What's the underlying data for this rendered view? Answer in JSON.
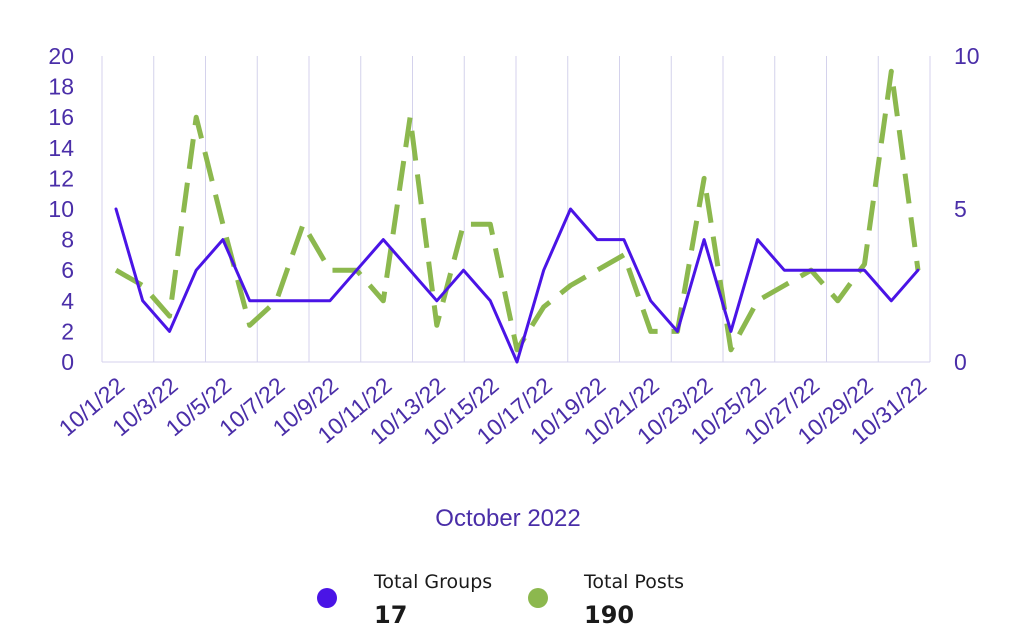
{
  "chart_data": {
    "type": "line",
    "xlabel": "October 2022",
    "categories": [
      "10/1/22",
      "10/2/22",
      "10/3/22",
      "10/4/22",
      "10/5/22",
      "10/6/22",
      "10/7/22",
      "10/8/22",
      "10/9/22",
      "10/10/22",
      "10/11/22",
      "10/12/22",
      "10/13/22",
      "10/14/22",
      "10/15/22",
      "10/16/22",
      "10/17/22",
      "10/18/22",
      "10/19/22",
      "10/20/22",
      "10/21/22",
      "10/22/22",
      "10/23/22",
      "10/24/22",
      "10/25/22",
      "10/26/22",
      "10/27/22",
      "10/28/22",
      "10/29/22",
      "10/30/22",
      "10/31/22"
    ],
    "tick_labels": [
      "10/1/22",
      "10/3/22",
      "10/5/22",
      "10/7/22",
      "10/9/22",
      "10/11/22",
      "10/13/22",
      "10/15/22",
      "10/17/22",
      "10/19/22",
      "10/21/22",
      "10/23/22",
      "10/25/22",
      "10/27/22",
      "10/29/22",
      "10/31/22"
    ],
    "y_left": {
      "ylim": [
        0,
        20
      ],
      "ticks": [
        0,
        2,
        4,
        6,
        8,
        10,
        12,
        14,
        16,
        18,
        20
      ]
    },
    "y_right": {
      "ylim": [
        0,
        10
      ],
      "ticks": [
        0,
        5,
        10
      ]
    },
    "grid": "vertical",
    "legend_position": "bottom",
    "series": [
      {
        "name": "Total Groups",
        "axis": "left",
        "style": "solid",
        "color": "#4a14e6",
        "values": [
          10,
          4,
          2,
          6,
          8,
          4,
          4,
          4,
          4,
          6,
          8,
          6,
          4,
          6,
          4,
          0,
          6,
          10,
          8,
          8,
          4,
          2,
          8,
          2,
          8,
          6,
          6,
          6,
          6,
          4,
          6
        ]
      },
      {
        "name": "Total Posts",
        "axis": "right",
        "style": "dashed",
        "color": "#8cb84e",
        "values": [
          3,
          2.5,
          1.5,
          8,
          4.5,
          1.2,
          2,
          4.5,
          3,
          3,
          2,
          8,
          1.2,
          4.5,
          4.5,
          0.4,
          1.8,
          2.5,
          3,
          3.5,
          1,
          1,
          6,
          0.4,
          2,
          2.5,
          3,
          2,
          3.2,
          9.5,
          3
        ]
      }
    ]
  },
  "legend": [
    {
      "name": "Total Groups",
      "value": "17",
      "color": "#4a14e6"
    },
    {
      "name": "Total Posts",
      "value": "190",
      "color": "#8cb84e"
    }
  ]
}
